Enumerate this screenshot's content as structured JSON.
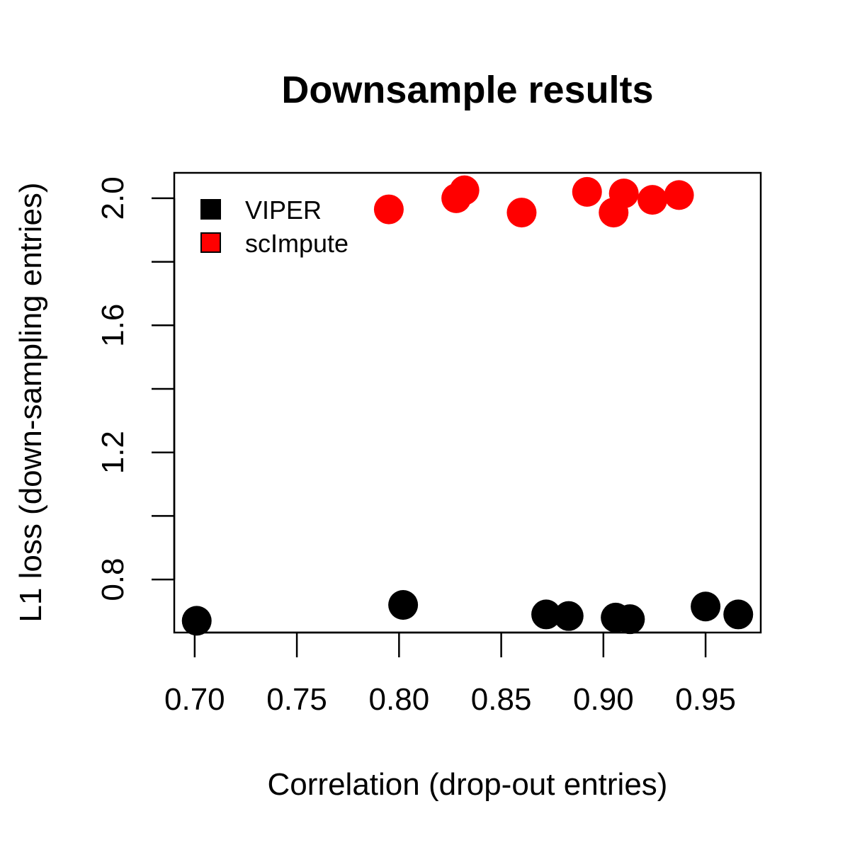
{
  "chart_data": {
    "type": "scatter",
    "title": "Downsample results",
    "xlabel": "Correlation (drop-out entries)",
    "ylabel": "L1 loss (down-sampling entries)",
    "xlim": [
      0.69,
      0.977
    ],
    "ylim": [
      0.633,
      2.08
    ],
    "x_ticks": [
      0.7,
      0.75,
      0.8,
      0.85,
      0.9,
      0.95
    ],
    "x_tick_labels": [
      "0.70",
      "0.75",
      "0.80",
      "0.85",
      "0.90",
      "0.95"
    ],
    "y_ticks": [
      0.8,
      1.0,
      1.2,
      1.4,
      1.6,
      1.8,
      2.0
    ],
    "y_tick_labels": [
      "0.8",
      "",
      "1.2",
      "",
      "1.6",
      "",
      "2.0"
    ],
    "grid": false,
    "legend_position": "top-left",
    "series": [
      {
        "name": "VIPER",
        "color": "#000000",
        "points": [
          {
            "x": 0.701,
            "y": 0.67
          },
          {
            "x": 0.802,
            "y": 0.72
          },
          {
            "x": 0.872,
            "y": 0.69
          },
          {
            "x": 0.883,
            "y": 0.685
          },
          {
            "x": 0.906,
            "y": 0.68
          },
          {
            "x": 0.913,
            "y": 0.675
          },
          {
            "x": 0.95,
            "y": 0.715
          },
          {
            "x": 0.966,
            "y": 0.69
          }
        ]
      },
      {
        "name": "scImpute",
        "color": "#ff0000",
        "points": [
          {
            "x": 0.795,
            "y": 1.965
          },
          {
            "x": 0.828,
            "y": 2.0
          },
          {
            "x": 0.832,
            "y": 2.025
          },
          {
            "x": 0.86,
            "y": 1.955
          },
          {
            "x": 0.892,
            "y": 2.02
          },
          {
            "x": 0.905,
            "y": 1.955
          },
          {
            "x": 0.91,
            "y": 2.015
          },
          {
            "x": 0.924,
            "y": 1.995
          },
          {
            "x": 0.937,
            "y": 2.01
          }
        ]
      }
    ]
  }
}
